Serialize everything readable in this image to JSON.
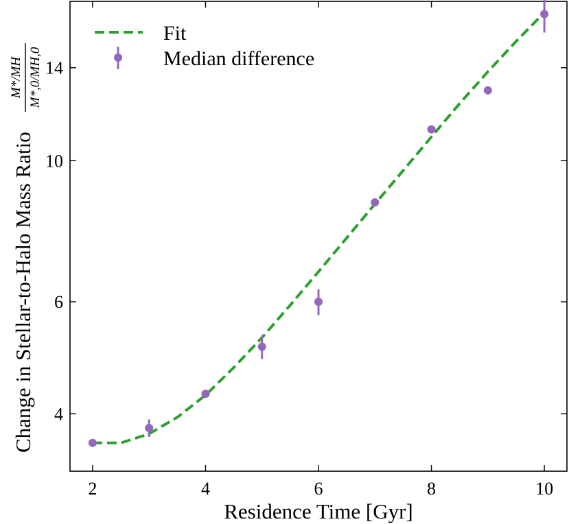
{
  "chart_data": {
    "type": "line",
    "xlabel": "Residence Time [Gyr]",
    "ylabel": "Change in Stellar-to-Halo Mass Ratio",
    "ylabel_fraction": {
      "numerator": "M*/MH",
      "denominator": "M*,0/MH,0"
    },
    "yscale": "log",
    "xlim": [
      1.6,
      10.4
    ],
    "ylim": [
      3.25,
      17.8
    ],
    "xticks": [
      2,
      4,
      6,
      8,
      10
    ],
    "yticks": [
      4,
      6,
      10,
      14
    ],
    "xtick_labels": [
      "2",
      "4",
      "6",
      "8",
      "10"
    ],
    "ytick_labels": [
      "4",
      "6",
      "10",
      "14"
    ],
    "legend_position": "top-left",
    "colors": {
      "fit": "#2ca02c",
      "points": "#9467bd"
    },
    "series": [
      {
        "name": "Fit",
        "style": "dashed",
        "x": [
          2.0,
          2.5,
          3.0,
          3.5,
          4.0,
          4.5,
          5.0,
          5.5,
          6.0,
          6.5,
          7.0,
          7.5,
          8.0,
          8.5,
          9.0,
          9.5,
          10.0
        ],
        "y": [
          3.6,
          3.6,
          3.72,
          3.95,
          4.28,
          4.73,
          5.27,
          5.93,
          6.69,
          7.56,
          8.55,
          9.65,
          10.9,
          12.3,
          13.8,
          15.4,
          17.1
        ]
      },
      {
        "name": "Median difference",
        "style": "errorbar",
        "x": [
          2,
          3,
          4,
          5,
          6,
          7,
          8,
          9,
          10
        ],
        "y": [
          3.6,
          3.8,
          4.3,
          5.1,
          6.0,
          8.6,
          11.2,
          12.9,
          17.0
        ],
        "yerr_low": [
          0.05,
          0.12,
          0.05,
          0.22,
          0.28,
          0.1,
          0.1,
          0.2,
          1.1
        ],
        "yerr_high": [
          0.05,
          0.12,
          0.05,
          0.22,
          0.28,
          0.1,
          0.1,
          0.2,
          1.1
        ]
      }
    ]
  }
}
